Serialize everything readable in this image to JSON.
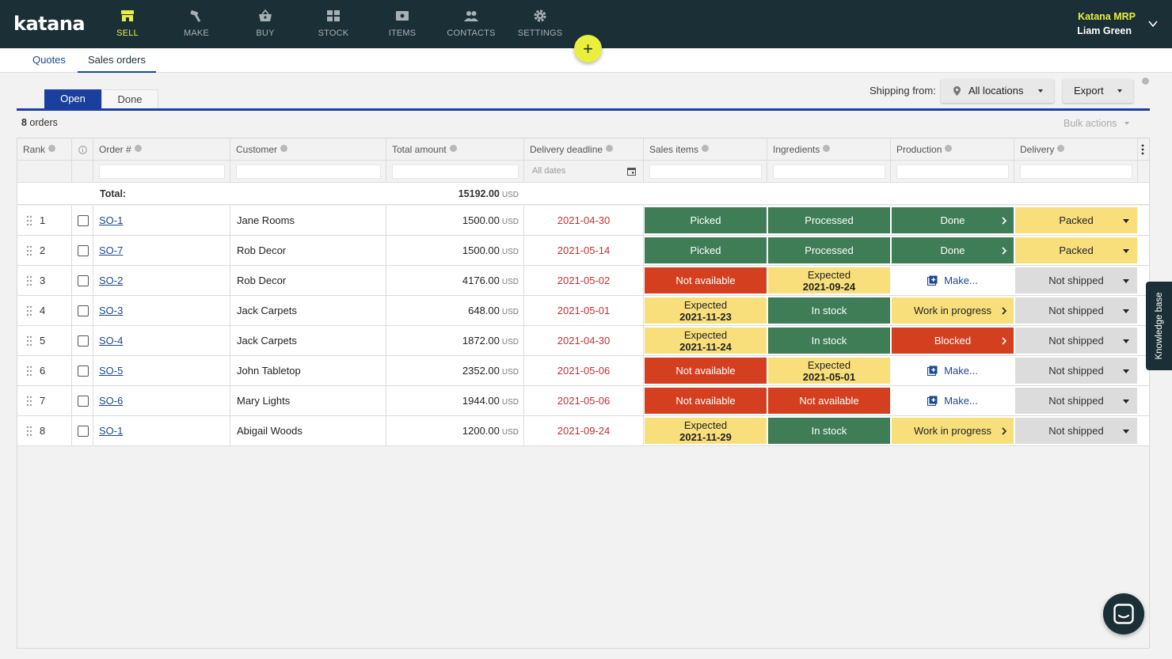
{
  "app": {
    "logo": "katana",
    "company": "Katana MRP",
    "user": "Liam Green"
  },
  "nav": [
    {
      "label": "SELL",
      "icon": "shop-icon",
      "active": true
    },
    {
      "label": "MAKE",
      "icon": "hammer-icon",
      "active": false
    },
    {
      "label": "BUY",
      "icon": "basket-icon",
      "active": false
    },
    {
      "label": "STOCK",
      "icon": "boxes-icon",
      "active": false
    },
    {
      "label": "ITEMS",
      "icon": "ticket-icon",
      "active": false
    },
    {
      "label": "CONTACTS",
      "icon": "people-icon",
      "active": false
    },
    {
      "label": "SETTINGS",
      "icon": "gear-icon",
      "active": false
    }
  ],
  "plus_label": "+",
  "subtabs": {
    "quotes": "Quotes",
    "sales_orders": "Sales orders"
  },
  "toggles": {
    "open": "Open",
    "done": "Done"
  },
  "toolbar": {
    "shipping_label": "Shipping from:",
    "locations": "All locations",
    "export": "Export",
    "bulk_actions": "Bulk actions"
  },
  "summary": {
    "count": "8",
    "count_suffix": " orders"
  },
  "columns": {
    "rank": "Rank",
    "order": "Order #",
    "customer": "Customer",
    "total": "Total amount",
    "deadline": "Delivery deadline",
    "sales_items": "Sales items",
    "ingredients": "Ingredients",
    "production": "Production",
    "delivery": "Delivery"
  },
  "filters": {
    "deadline_placeholder": "All dates"
  },
  "totals": {
    "label": "Total:",
    "amount": "15192.00",
    "currency": "USD"
  },
  "currency": "USD",
  "rows": [
    {
      "rank": "1",
      "order": "SO-1",
      "customer": "Jane Rooms",
      "amount": "1500.00",
      "deadline": "2021-04-30",
      "sales": {
        "tone": "green",
        "text": "Picked",
        "date": ""
      },
      "ingredients": {
        "tone": "green",
        "text": "Processed",
        "date": ""
      },
      "production": {
        "tone": "green",
        "text": "Done"
      },
      "delivery": {
        "tone": "yellow",
        "text": "Packed"
      }
    },
    {
      "rank": "2",
      "order": "SO-7",
      "customer": "Rob Decor",
      "amount": "1500.00",
      "deadline": "2021-05-14",
      "sales": {
        "tone": "green",
        "text": "Picked",
        "date": ""
      },
      "ingredients": {
        "tone": "green",
        "text": "Processed",
        "date": ""
      },
      "production": {
        "tone": "green",
        "text": "Done"
      },
      "delivery": {
        "tone": "yellow",
        "text": "Packed"
      }
    },
    {
      "rank": "3",
      "order": "SO-2",
      "customer": "Rob Decor",
      "amount": "4176.00",
      "deadline": "2021-05-02",
      "sales": {
        "tone": "red",
        "text": "Not available",
        "date": ""
      },
      "ingredients": {
        "tone": "yellow",
        "text": "Expected",
        "date": "2021-09-24"
      },
      "production": {
        "tone": "white",
        "text": "Make..."
      },
      "delivery": {
        "tone": "grey",
        "text": "Not shipped"
      }
    },
    {
      "rank": "4",
      "order": "SO-3",
      "customer": "Jack Carpets",
      "amount": "648.00",
      "deadline": "2021-05-01",
      "sales": {
        "tone": "yellow",
        "text": "Expected",
        "date": "2021-11-23"
      },
      "ingredients": {
        "tone": "green",
        "text": "In stock",
        "date": ""
      },
      "production": {
        "tone": "yellow",
        "text": "Work in progress"
      },
      "delivery": {
        "tone": "grey",
        "text": "Not shipped"
      }
    },
    {
      "rank": "5",
      "order": "SO-4",
      "customer": "Jack Carpets",
      "amount": "1872.00",
      "deadline": "2021-04-30",
      "sales": {
        "tone": "yellow",
        "text": "Expected",
        "date": "2021-11-24"
      },
      "ingredients": {
        "tone": "green",
        "text": "In stock",
        "date": ""
      },
      "production": {
        "tone": "red",
        "text": "Blocked"
      },
      "delivery": {
        "tone": "grey",
        "text": "Not shipped"
      }
    },
    {
      "rank": "6",
      "order": "SO-5",
      "customer": "John Tabletop",
      "amount": "2352.00",
      "deadline": "2021-05-06",
      "sales": {
        "tone": "red",
        "text": "Not available",
        "date": ""
      },
      "ingredients": {
        "tone": "yellow",
        "text": "Expected",
        "date": "2021-05-01"
      },
      "production": {
        "tone": "white",
        "text": "Make..."
      },
      "delivery": {
        "tone": "grey",
        "text": "Not shipped"
      }
    },
    {
      "rank": "7",
      "order": "SO-6",
      "customer": "Mary Lights",
      "amount": "1944.00",
      "deadline": "2021-05-06",
      "sales": {
        "tone": "red",
        "text": "Not available",
        "date": ""
      },
      "ingredients": {
        "tone": "red",
        "text": "Not available",
        "date": ""
      },
      "production": {
        "tone": "white",
        "text": "Make..."
      },
      "delivery": {
        "tone": "grey",
        "text": "Not shipped"
      }
    },
    {
      "rank": "8",
      "order": "SO-1",
      "customer": "Abigail Woods",
      "amount": "1200.00",
      "deadline": "2021-09-24",
      "sales": {
        "tone": "yellow",
        "text": "Expected",
        "date": "2021-11-29"
      },
      "ingredients": {
        "tone": "green",
        "text": "In stock",
        "date": ""
      },
      "production": {
        "tone": "yellow",
        "text": "Work in progress"
      },
      "delivery": {
        "tone": "grey",
        "text": "Not shipped"
      }
    }
  ],
  "knowledge_base": "Knowledge base",
  "colors": {
    "green": "#3f7d57",
    "red": "#d43f1f",
    "yellow": "#f8df7c",
    "grey": "#dcdcdc",
    "topbar": "#1b2f36",
    "accent": "#e9ef3c",
    "blue": "#1a3f9c"
  }
}
